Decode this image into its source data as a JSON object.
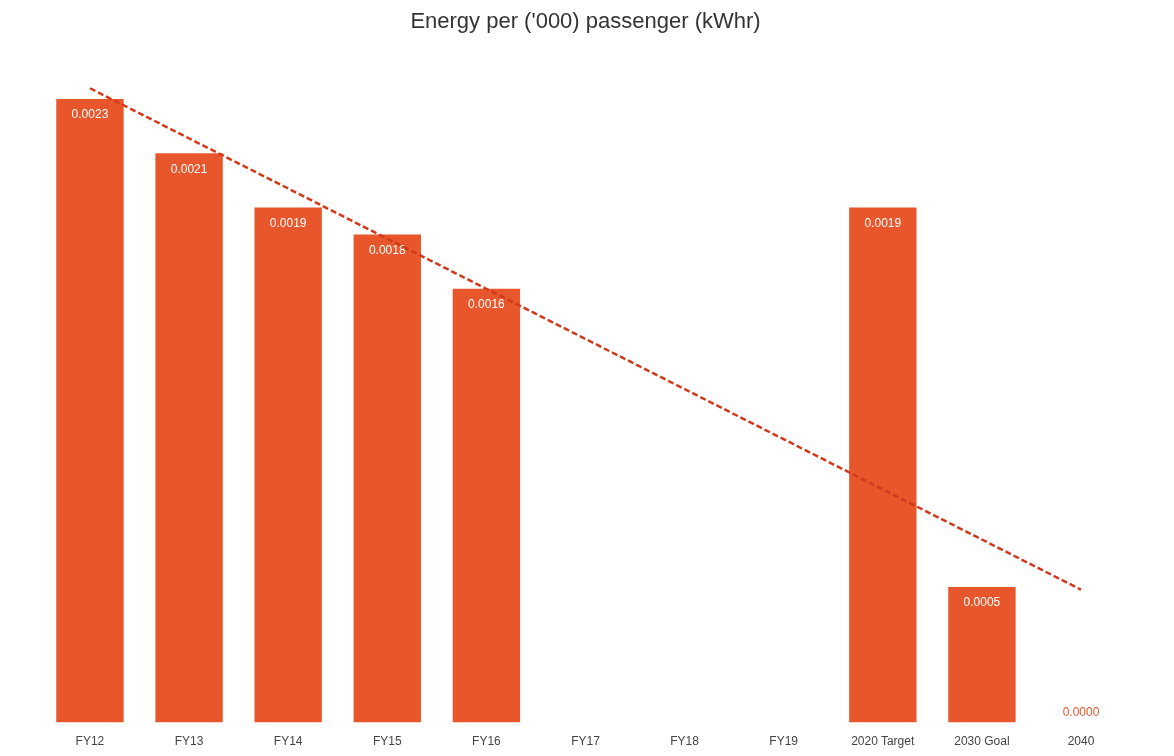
{
  "chart_data": {
    "type": "bar",
    "title": "Energy per ('000) passenger (kWhr)",
    "categories": [
      "FY12",
      "FY13",
      "FY14",
      "FY15",
      "FY16",
      "FY17",
      "FY18",
      "FY19",
      "2020 Target",
      "2030 Goal",
      "2040"
    ],
    "series": [
      {
        "color": "#e8572c",
        "values": [
          0.0023,
          0.0021,
          0.0019,
          0.0018,
          0.0016,
          null,
          null,
          null,
          0.0019,
          0.0005,
          0.0
        ],
        "value_labels": [
          "0.0023",
          "0.0021",
          "0.0019",
          "0.0018",
          "0.0016",
          null,
          null,
          null,
          "0.0019",
          "0.0005",
          "0.0000"
        ]
      },
      {
        "type": "line",
        "color": "#d2391b",
        "line_style": "dashed",
        "values": [
          0.00234,
          null,
          null,
          null,
          null,
          null,
          null,
          null,
          null,
          null,
          0.00049
        ]
      }
    ],
    "grid": false
  }
}
